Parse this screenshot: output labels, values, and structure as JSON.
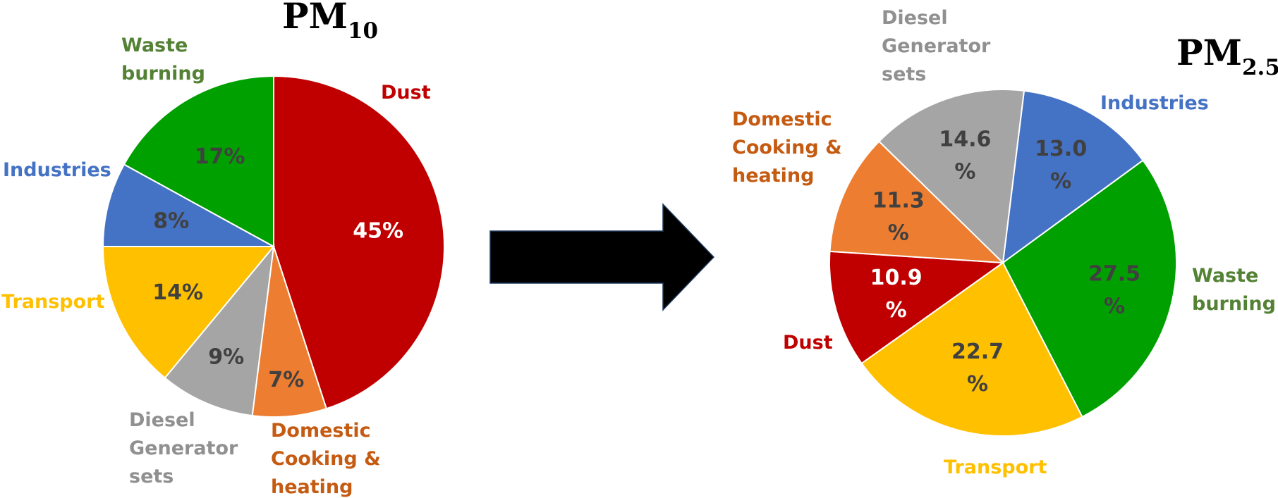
{
  "chart_data": [
    {
      "type": "pie",
      "title_main": "PM",
      "title_sub": "10",
      "slices": [
        {
          "name": "Dust",
          "value": 45,
          "label": "45%",
          "color": "#c00000",
          "label_color": "#c00000",
          "value_color": "#ffffff"
        },
        {
          "name": "Domestic Cooking & heating",
          "value": 7,
          "label": "7%",
          "color": "#ed7d31",
          "label_color": "#c55a11",
          "value_color": "#404040"
        },
        {
          "name": "Diesel Generator sets",
          "value": 9,
          "label": "9%",
          "color": "#a5a5a5",
          "label_color": "#909090",
          "value_color": "#404040"
        },
        {
          "name": "Transport",
          "value": 14,
          "label": "14%",
          "color": "#ffc000",
          "label_color": "#ffc000",
          "value_color": "#404040"
        },
        {
          "name": "Industries",
          "value": 8,
          "label": "8%",
          "color": "#4472c4",
          "label_color": "#4472c4",
          "value_color": "#404040"
        },
        {
          "name": "Waste burning",
          "value": 17,
          "label": "17%",
          "color": "#00a000",
          "label_color": "#548235",
          "value_color": "#404040"
        }
      ]
    },
    {
      "type": "pie",
      "title_main": "PM",
      "title_sub": "2.5",
      "slices": [
        {
          "name": "Industries",
          "value": 13.0,
          "label_lines": [
            "13.0",
            "%"
          ],
          "color": "#4472c4",
          "label_color": "#4472c4",
          "value_color": "#404040"
        },
        {
          "name": "Waste burning",
          "value": 27.5,
          "label_lines": [
            "27.5",
            "%"
          ],
          "color": "#00a000",
          "label_color": "#548235",
          "value_color": "#404040"
        },
        {
          "name": "Transport",
          "value": 22.7,
          "label_lines": [
            "22.7",
            "%"
          ],
          "color": "#ffc000",
          "label_color": "#ffc000",
          "value_color": "#404040"
        },
        {
          "name": "Dust",
          "value": 10.9,
          "label_lines": [
            "10.9",
            "%"
          ],
          "color": "#c00000",
          "label_color": "#c00000",
          "value_color": "#ffffff"
        },
        {
          "name": "Domestic Cooking & heating",
          "value": 11.3,
          "label_lines": [
            "11.3",
            "%"
          ],
          "color": "#ed7d31",
          "label_color": "#c55a11",
          "value_color": "#404040"
        },
        {
          "name": "Diesel Generator sets",
          "value": 14.6,
          "label_lines": [
            "14.6",
            "%"
          ],
          "color": "#a5a5a5",
          "label_color": "#909090",
          "value_color": "#404040"
        }
      ]
    }
  ],
  "category_labels": {
    "pm10": {
      "waste": [
        "Waste",
        "burning"
      ],
      "dust": [
        "Dust"
      ],
      "industries": [
        "Industries"
      ],
      "transport": [
        "Transport"
      ],
      "diesel": [
        "Diesel",
        "Generator",
        "sets"
      ],
      "domestic": [
        "Domestic",
        "Cooking &",
        "heating"
      ]
    },
    "pm25": {
      "diesel": [
        "Diesel",
        "Generator",
        "sets"
      ],
      "industries": [
        "Industries"
      ],
      "domestic": [
        "Domestic",
        "Cooking &",
        "heating"
      ],
      "waste": [
        "Waste",
        "burning"
      ],
      "dust": [
        "Dust"
      ],
      "transport": [
        "Transport"
      ]
    }
  },
  "arrow": {
    "color": "#000000",
    "direction": "right"
  }
}
